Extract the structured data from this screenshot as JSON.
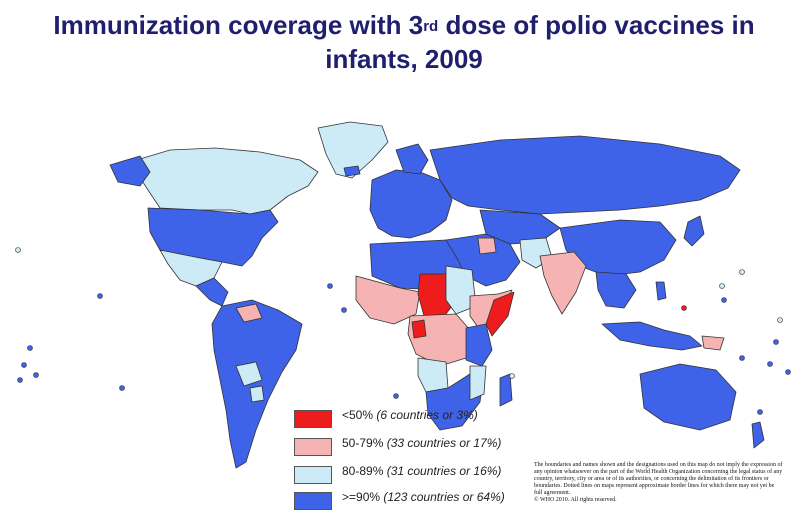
{
  "title": {
    "line1_pre": "Immunization coverage with 3",
    "line1_sup": "rd",
    "line1_post": " dose of polio vaccines in",
    "line2": "infants, 2009"
  },
  "legend": [
    {
      "range": "<50%",
      "detail": " (6 countries or 3%)",
      "color": "#ee1c1c"
    },
    {
      "range": "50-79%",
      "detail": " (33 countries or 17%)",
      "color": "#f5b3b3"
    },
    {
      "range": "80-89%",
      "detail": " (31 countries or 16%)",
      "color": "#cdebf7"
    },
    {
      "range": ">=90%",
      "detail": " (123 countries or 64%)",
      "color": "#3f63e8"
    }
  ],
  "disclaimer": {
    "text": "The boundaries and names shown and the designations used on this map do not imply the expression of any opinion whatsoever on the part of the World Health Organization concerning the legal status of any country, territory, city or area or of its authorities, or concerning the delimitation of its frontiers or boundaries. Dotted lines on maps represent approximate border lines for which there may not yet be full agreement.",
    "copyright": "© WHO 2010. All rights reserved."
  },
  "colors": {
    "title": "#1f1f6e",
    "high": "#3f63e8",
    "mid_high": "#cdebf7",
    "mid_low": "#f5b3b3",
    "low": "#ee1c1c",
    "border": "#333333"
  }
}
